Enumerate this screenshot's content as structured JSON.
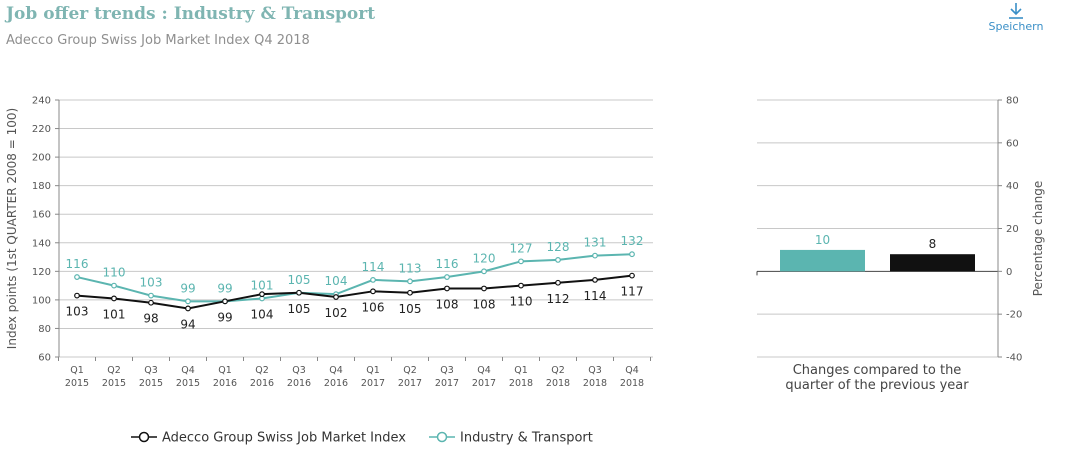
{
  "header": {
    "title": "Job offer trends : Industry & Transport",
    "subtitle": "Adecco Group Swiss Job Market Index Q4 2018"
  },
  "toolbar": {
    "save_label": "Speichern",
    "save_icon": "download-icon"
  },
  "colors": {
    "teal": "#5bb5b0",
    "black": "#111111",
    "grid": "#c8c8c8",
    "axis_text": "#555555"
  },
  "legend": {
    "items": [
      {
        "label": "Adecco Group Swiss Job Market Index",
        "color": "#111111"
      },
      {
        "label": "Industry & Transport",
        "color": "#5bb5b0"
      }
    ],
    "position": "bottom"
  },
  "chart_data": [
    {
      "type": "line",
      "ylabel": "Index points (1st QUARTER 2008 = 100)",
      "ylim": [
        60,
        240
      ],
      "yticks": [
        60,
        80,
        100,
        120,
        140,
        160,
        180,
        200,
        220,
        240
      ],
      "grid": true,
      "categories": [
        [
          "Q1",
          "2015"
        ],
        [
          "Q2",
          "2015"
        ],
        [
          "Q3",
          "2015"
        ],
        [
          "Q4",
          "2015"
        ],
        [
          "Q1",
          "2016"
        ],
        [
          "Q2",
          "2016"
        ],
        [
          "Q3",
          "2016"
        ],
        [
          "Q4",
          "2016"
        ],
        [
          "Q1",
          "2017"
        ],
        [
          "Q2",
          "2017"
        ],
        [
          "Q3",
          "2017"
        ],
        [
          "Q4",
          "2017"
        ],
        [
          "Q1",
          "2018"
        ],
        [
          "Q2",
          "2018"
        ],
        [
          "Q3",
          "2018"
        ],
        [
          "Q4",
          "2018"
        ]
      ],
      "series": [
        {
          "name": "Adecco Group Swiss Job Market Index",
          "color": "#111111",
          "values": [
            103,
            101,
            98,
            94,
            99,
            104,
            105,
            102,
            106,
            105,
            108,
            108,
            110,
            112,
            114,
            117
          ]
        },
        {
          "name": "Industry & Transport",
          "color": "#5bb5b0",
          "values": [
            116,
            110,
            103,
            99,
            99,
            101,
            105,
            104,
            114,
            113,
            116,
            120,
            127,
            128,
            131,
            132
          ]
        }
      ]
    },
    {
      "type": "bar",
      "xlabel_lines": [
        "Changes compared to the",
        "quarter of the previous year"
      ],
      "ylabel": "Percentage change",
      "ylim": [
        -40,
        80
      ],
      "yticks": [
        -40,
        -20,
        0,
        20,
        40,
        60,
        80
      ],
      "grid": true,
      "bars": [
        {
          "value": 10,
          "color": "#5bb5b0",
          "label_color": "#5bb5b0"
        },
        {
          "value": 8,
          "color": "#111111",
          "label_color": "#222222"
        }
      ]
    }
  ]
}
